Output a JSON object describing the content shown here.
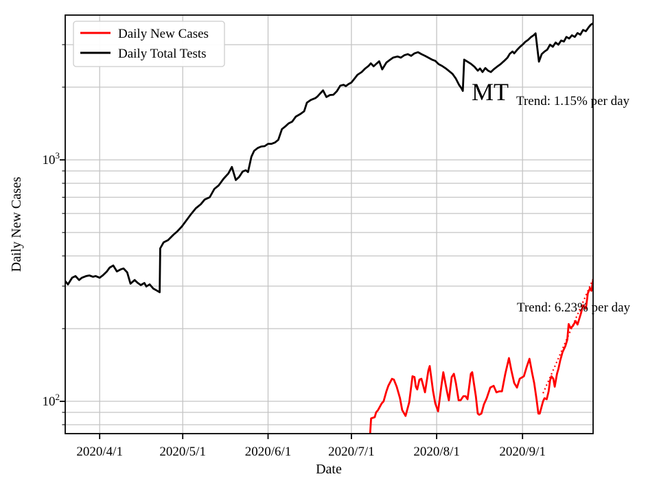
{
  "figure": {
    "state_label": "MT",
    "xlabel": "Date",
    "ylabel": "Daily New Cases",
    "annotations": {
      "tests_trend": "Trend: 1.15% per day",
      "cases_trend": "Trend: 6.23% per day"
    },
    "legend": [
      {
        "label": "Daily New Cases",
        "color": "#ff0000"
      },
      {
        "label": "Daily Total Tests",
        "color": "#000000"
      }
    ]
  },
  "chart_data": {
    "type": "line",
    "title": "",
    "xlabel": "Date",
    "ylabel": "Daily New Cases",
    "grid": true,
    "legend_position": "upper-left",
    "x_axis": {
      "scale": "time",
      "unit": "days from left edge of axis (axis spans approx. 2020/3/19 to 2020/9/26)",
      "domain_days": [
        0,
        190
      ],
      "ticks": [
        {
          "label": "2020/4/1",
          "day": 12.4
        },
        {
          "label": "2020/5/1",
          "day": 42.3
        },
        {
          "label": "2020/6/1",
          "day": 73.0
        },
        {
          "label": "2020/7/1",
          "day": 103.0
        },
        {
          "label": "2020/8/1",
          "day": 133.7
        },
        {
          "label": "2020/9/1",
          "day": 164.6
        }
      ]
    },
    "y_axis": {
      "scale": "log",
      "lim": [
        73.5,
        3976
      ],
      "major_ticks": [
        {
          "base": "10",
          "exp": "2",
          "value": 100
        },
        {
          "base": "10",
          "exp": "3",
          "value": 1000
        }
      ]
    },
    "series": [
      {
        "name": "Daily Total Tests",
        "color": "#000000",
        "style": "solid",
        "width": 2.8,
        "points": [
          [
            0,
            315
          ],
          [
            1,
            305
          ],
          [
            2.5,
            325
          ],
          [
            3.7,
            330
          ],
          [
            5,
            318
          ],
          [
            6,
            325
          ],
          [
            7.5,
            330
          ],
          [
            8.7,
            332
          ],
          [
            10,
            328
          ],
          [
            11,
            330
          ],
          [
            12.4,
            325
          ],
          [
            13.6,
            333
          ],
          [
            15,
            345
          ],
          [
            16,
            358
          ],
          [
            17.3,
            365
          ],
          [
            18.6,
            345
          ],
          [
            20,
            352
          ],
          [
            21,
            355
          ],
          [
            22.3,
            342
          ],
          [
            23.5,
            307
          ],
          [
            25,
            318
          ],
          [
            26,
            310
          ],
          [
            27.2,
            303
          ],
          [
            28.5,
            309
          ],
          [
            29.2,
            299
          ],
          [
            30.4,
            305
          ],
          [
            31.7,
            293
          ],
          [
            32.9,
            288
          ],
          [
            34,
            283
          ],
          [
            34.2,
            430
          ],
          [
            35.4,
            455
          ],
          [
            37,
            465
          ],
          [
            39,
            490
          ],
          [
            40.3,
            505
          ],
          [
            42,
            530
          ],
          [
            43.8,
            565
          ],
          [
            45.3,
            596
          ],
          [
            47,
            630
          ],
          [
            48.8,
            655
          ],
          [
            50.2,
            685
          ],
          [
            52,
            700
          ],
          [
            53.7,
            758
          ],
          [
            55.2,
            783
          ],
          [
            57,
            835
          ],
          [
            58.7,
            878
          ],
          [
            60,
            935
          ],
          [
            61.4,
            825
          ],
          [
            62.6,
            850
          ],
          [
            63.9,
            895
          ],
          [
            65,
            905
          ],
          [
            65.8,
            890
          ],
          [
            67,
            1030
          ],
          [
            68,
            1090
          ],
          [
            69.3,
            1120
          ],
          [
            70.5,
            1135
          ],
          [
            71.8,
            1140
          ],
          [
            73,
            1165
          ],
          [
            74.3,
            1165
          ],
          [
            75.5,
            1180
          ],
          [
            76.7,
            1210
          ],
          [
            78,
            1340
          ],
          [
            79.2,
            1375
          ],
          [
            80.4,
            1415
          ],
          [
            81.7,
            1440
          ],
          [
            83,
            1510
          ],
          [
            84.7,
            1550
          ],
          [
            86,
            1590
          ],
          [
            87,
            1725
          ],
          [
            88.4,
            1770
          ],
          [
            90,
            1800
          ],
          [
            90.8,
            1830
          ],
          [
            92.8,
            1940
          ],
          [
            94,
            1820
          ],
          [
            95.3,
            1855
          ],
          [
            96.5,
            1860
          ],
          [
            97.8,
            1925
          ],
          [
            99,
            2030
          ],
          [
            100.2,
            2045
          ],
          [
            101,
            2020
          ],
          [
            102,
            2060
          ],
          [
            103,
            2090
          ],
          [
            104,
            2160
          ],
          [
            105.2,
            2250
          ],
          [
            106.7,
            2310
          ],
          [
            108,
            2390
          ],
          [
            109.2,
            2450
          ],
          [
            110,
            2510
          ],
          [
            111,
            2440
          ],
          [
            112,
            2500
          ],
          [
            113,
            2560
          ],
          [
            114.1,
            2370
          ],
          [
            115.6,
            2530
          ],
          [
            116.8,
            2590
          ],
          [
            118,
            2650
          ],
          [
            119.6,
            2680
          ],
          [
            120.8,
            2650
          ],
          [
            122,
            2710
          ],
          [
            123.3,
            2740
          ],
          [
            124.5,
            2695
          ],
          [
            125.7,
            2760
          ],
          [
            127,
            2790
          ],
          [
            128.2,
            2740
          ],
          [
            129.5,
            2695
          ],
          [
            130.7,
            2650
          ],
          [
            132,
            2600
          ],
          [
            133.2,
            2570
          ],
          [
            134.4,
            2490
          ],
          [
            135.6,
            2450
          ],
          [
            137,
            2390
          ],
          [
            138,
            2340
          ],
          [
            139.4,
            2270
          ],
          [
            140.6,
            2170
          ],
          [
            141.8,
            2040
          ],
          [
            142.6,
            1980
          ],
          [
            143.1,
            1930
          ],
          [
            143.6,
            2600
          ],
          [
            144.8,
            2550
          ],
          [
            146,
            2500
          ],
          [
            147.3,
            2430
          ],
          [
            148.5,
            2340
          ],
          [
            149.3,
            2390
          ],
          [
            150.2,
            2310
          ],
          [
            151.2,
            2400
          ],
          [
            152.2,
            2340
          ],
          [
            153.2,
            2310
          ],
          [
            154.2,
            2370
          ],
          [
            155.4,
            2430
          ],
          [
            156.7,
            2490
          ],
          [
            158,
            2570
          ],
          [
            159.2,
            2650
          ],
          [
            160,
            2750
          ],
          [
            161,
            2810
          ],
          [
            161.6,
            2760
          ],
          [
            162.6,
            2850
          ],
          [
            163.6,
            2930
          ],
          [
            164.6,
            3000
          ],
          [
            165.6,
            3080
          ],
          [
            166.6,
            3140
          ],
          [
            167.6,
            3220
          ],
          [
            168.6,
            3280
          ],
          [
            169.3,
            3340
          ],
          [
            170.5,
            2550
          ],
          [
            171.5,
            2740
          ],
          [
            172.5,
            2810
          ],
          [
            173.5,
            2860
          ],
          [
            174.5,
            3000
          ],
          [
            175.5,
            2940
          ],
          [
            176.5,
            3060
          ],
          [
            177.5,
            3000
          ],
          [
            178.5,
            3120
          ],
          [
            179.5,
            3090
          ],
          [
            180.4,
            3230
          ],
          [
            181.4,
            3180
          ],
          [
            182.4,
            3280
          ],
          [
            183.4,
            3230
          ],
          [
            184.4,
            3350
          ],
          [
            185.4,
            3300
          ],
          [
            186.4,
            3450
          ],
          [
            187.4,
            3410
          ],
          [
            188.4,
            3540
          ],
          [
            189.1,
            3620
          ],
          [
            190,
            3680
          ]
        ]
      },
      {
        "name": "Daily New Cases",
        "color": "#ff0000",
        "style": "solid",
        "width": 2.8,
        "points": [
          [
            109.7,
            72
          ],
          [
            110.1,
            85
          ],
          [
            111.4,
            86
          ],
          [
            111.9,
            90
          ],
          [
            112.6,
            92
          ],
          [
            113.9,
            98
          ],
          [
            114.6,
            100
          ],
          [
            115.6,
            110
          ],
          [
            116.3,
            116
          ],
          [
            117.6,
            124
          ],
          [
            118.3,
            123
          ],
          [
            119.3,
            115
          ],
          [
            120.5,
            103
          ],
          [
            121.3,
            92
          ],
          [
            122.5,
            87
          ],
          [
            123.8,
            99
          ],
          [
            125,
            127
          ],
          [
            125.7,
            126
          ],
          [
            126.2,
            115
          ],
          [
            126.7,
            112
          ],
          [
            127.5,
            123
          ],
          [
            128.2,
            124
          ],
          [
            129.5,
            109
          ],
          [
            130.7,
            134
          ],
          [
            131.2,
            140
          ],
          [
            132.4,
            110
          ],
          [
            133.2,
            98
          ],
          [
            134.2,
            91
          ],
          [
            135.4,
            116
          ],
          [
            136.1,
            132
          ],
          [
            137.4,
            110
          ],
          [
            138.1,
            101
          ],
          [
            139.1,
            126
          ],
          [
            139.9,
            130
          ],
          [
            140.6,
            119
          ],
          [
            141.6,
            101
          ],
          [
            142.3,
            101
          ],
          [
            143.3,
            105
          ],
          [
            144.1,
            105
          ],
          [
            144.8,
            102
          ],
          [
            146,
            130
          ],
          [
            146.5,
            132
          ],
          [
            147.8,
            105
          ],
          [
            148.5,
            89
          ],
          [
            149,
            88
          ],
          [
            149.8,
            89
          ],
          [
            150.7,
            97
          ],
          [
            151.7,
            103
          ],
          [
            153,
            114
          ],
          [
            154.2,
            116
          ],
          [
            155.2,
            109
          ],
          [
            156.2,
            110
          ],
          [
            157.2,
            110
          ],
          [
            158.4,
            130
          ],
          [
            159.7,
            151
          ],
          [
            160.6,
            134
          ],
          [
            161.6,
            119
          ],
          [
            162.6,
            114
          ],
          [
            163.6,
            124
          ],
          [
            164.6,
            126
          ],
          [
            165.1,
            127
          ],
          [
            166.1,
            139
          ],
          [
            167.1,
            150
          ],
          [
            168.1,
            130
          ],
          [
            168.8,
            119
          ],
          [
            169.6,
            103
          ],
          [
            170.3,
            89
          ],
          [
            170.8,
            89
          ],
          [
            172,
            100
          ],
          [
            172.5,
            103
          ],
          [
            173.3,
            102
          ],
          [
            174,
            110
          ],
          [
            174.5,
            122
          ],
          [
            175,
            127
          ],
          [
            175.7,
            124
          ],
          [
            176.2,
            115
          ],
          [
            177,
            130
          ],
          [
            177.5,
            136
          ],
          [
            178.2,
            148
          ],
          [
            179,
            160
          ],
          [
            180,
            169
          ],
          [
            180.7,
            180
          ],
          [
            181.2,
            209
          ],
          [
            181.9,
            201
          ],
          [
            182.7,
            205
          ],
          [
            183.7,
            215
          ],
          [
            184.4,
            208
          ],
          [
            185.6,
            231
          ],
          [
            186.4,
            250
          ],
          [
            187.4,
            242
          ],
          [
            188.1,
            280
          ],
          [
            188.9,
            294
          ],
          [
            189.4,
            287
          ],
          [
            190,
            318
          ]
        ]
      },
      {
        "name": "Cases trend fit (6.23% per day)",
        "color": "#ff0000",
        "style": "dotted",
        "width": 2.2,
        "points": [
          [
            172,
            108
          ],
          [
            190,
            321
          ]
        ]
      }
    ]
  }
}
